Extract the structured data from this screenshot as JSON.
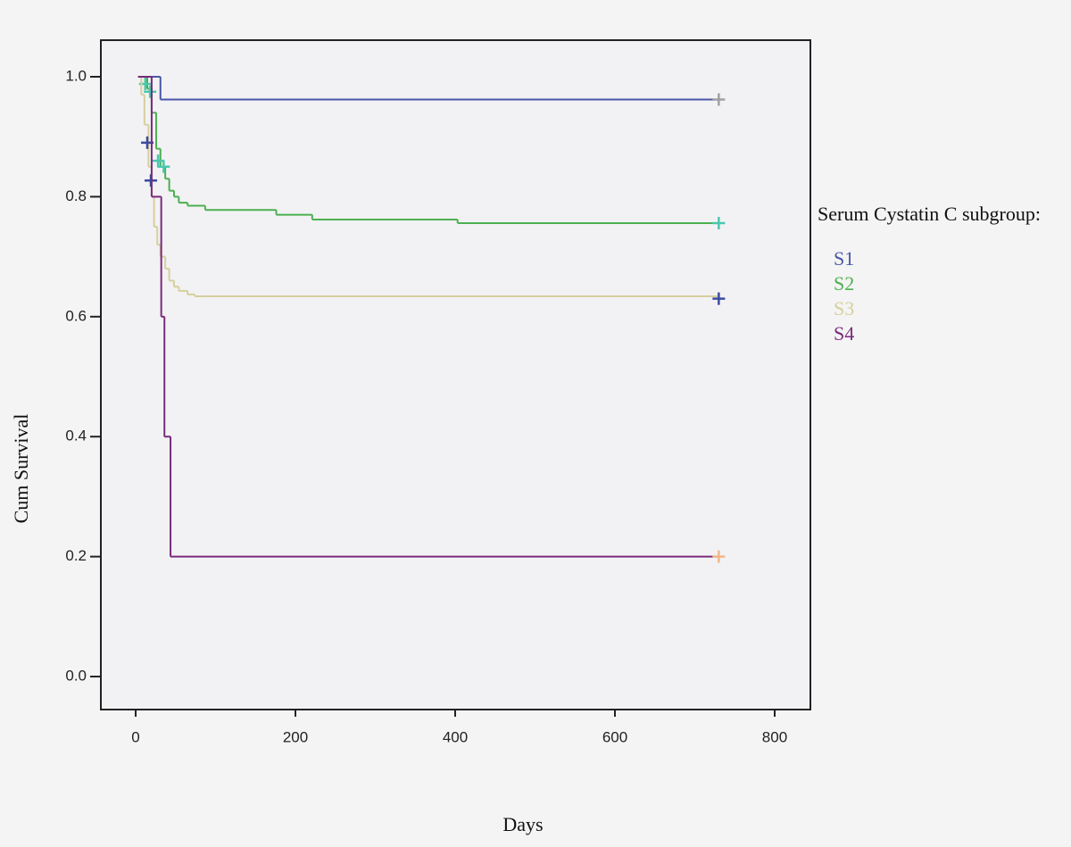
{
  "chart_data": {
    "type": "step",
    "x_label": "Days",
    "y_label": "Cum Survival",
    "legend_title": "Serum Cystatin C subgroup:",
    "legend": "right",
    "xlim": [
      -43.6,
      844.7
    ],
    "ylim": [
      -0.055,
      1.061
    ],
    "xticks": [
      0,
      200,
      400,
      600,
      800
    ],
    "yticks": [
      {
        "value": 0,
        "label": "0.0"
      },
      0.2,
      0.4,
      0.6,
      0.8,
      {
        "value": 1,
        "label": "1.0"
      }
    ],
    "series": [
      {
        "name": "S1",
        "color": "#4a56a8",
        "x": [
          3,
          31,
          730
        ],
        "values": [
          1.0,
          0.962,
          0.962
        ],
        "censor_color": "#a0a0a4",
        "censored": {
          "x": [
            730
          ],
          "values": [
            0.962
          ]
        }
      },
      {
        "name": "S2",
        "color": "#4cb050",
        "x": [
          9,
          14.5,
          20,
          25.7,
          31,
          37,
          42,
          48,
          54,
          65,
          87,
          176,
          221,
          403,
          730
        ],
        "values": [
          1.0,
          0.98,
          0.94,
          0.88,
          0.85,
          0.83,
          0.81,
          0.8,
          0.79,
          0.785,
          0.778,
          0.77,
          0.762,
          0.756,
          0.756
        ],
        "censor_color": "#4cc7b0",
        "censored": {
          "x": [
            12,
            18,
            28,
            35,
            730
          ],
          "values": [
            0.988,
            0.975,
            0.86,
            0.85,
            0.756
          ]
        }
      },
      {
        "name": "S3",
        "color": "#d6cf9e",
        "x": [
          5,
          7,
          11,
          16,
          20,
          23,
          27,
          31,
          37,
          42,
          48,
          54,
          65,
          74,
          730
        ],
        "values": [
          1.0,
          0.97,
          0.92,
          0.85,
          0.8,
          0.75,
          0.72,
          0.7,
          0.68,
          0.66,
          0.65,
          0.643,
          0.637,
          0.634,
          0.634
        ],
        "censor_color": "#3b4a9e",
        "censored": {
          "x": [
            14.5,
            19,
            730
          ],
          "values": [
            0.89,
            0.827,
            0.63
          ]
        }
      },
      {
        "name": "S4",
        "color": "#7b2a7b",
        "x": [
          3,
          20,
          32,
          36,
          43.6,
          730
        ],
        "values": [
          1.0,
          0.8,
          0.6,
          0.4,
          0.2,
          0.2
        ],
        "censor_color": "#f0b88a",
        "censored": {
          "x": [
            730
          ],
          "values": [
            0.2
          ]
        }
      }
    ]
  }
}
